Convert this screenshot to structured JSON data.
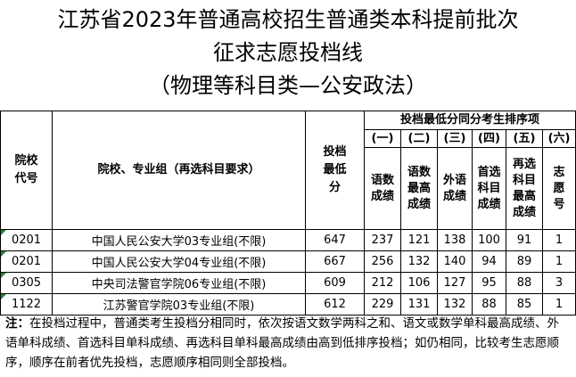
{
  "title_lines": [
    "江苏省2023年普通高校招生普通类本科提前批次",
    "征求志愿投档线",
    "（物理等科目类—公安政法）"
  ],
  "headers": {
    "code": "院校代号",
    "school": "院校、专业组（再选科目要求）",
    "min_score": "投档最低分",
    "rank_group": "投档最低分同分考生排序项",
    "subs": [
      {
        "num": "(一)",
        "label": "语数成绩"
      },
      {
        "num": "(二)",
        "label": "语数最高成绩"
      },
      {
        "num": "(三)",
        "label": "外语成绩"
      },
      {
        "num": "(四)",
        "label": "首选科目成绩"
      },
      {
        "num": "(五)",
        "label": "再选科目最高成绩"
      },
      {
        "num": "(六)",
        "label": "志愿号"
      }
    ]
  },
  "rows": [
    {
      "code": "0201",
      "name": "中国人民公安大学03专业组(不限)",
      "min": "647",
      "c1": "237",
      "c2": "121",
      "c3": "138",
      "c4": "100",
      "c5": "91",
      "c6": "1"
    },
    {
      "code": "0201",
      "name": "中国人民公安大学04专业组(不限)",
      "min": "667",
      "c1": "256",
      "c2": "132",
      "c3": "140",
      "c4": "94",
      "c5": "89",
      "c6": "1"
    },
    {
      "code": "0305",
      "name": "中央司法警官学院06专业组(不限)",
      "min": "609",
      "c1": "212",
      "c2": "106",
      "c3": "127",
      "c4": "95",
      "c5": "88",
      "c6": "3"
    },
    {
      "code": "1122",
      "name": "江苏警官学院03专业组(不限)",
      "min": "612",
      "c1": "229",
      "c2": "131",
      "c3": "132",
      "c4": "88",
      "c5": "85",
      "c6": "1"
    }
  ],
  "note": {
    "label": "注：",
    "text": "在投档过程中，普通类考生投档分相同时，依次按语文数学两科之和、语文或数学单科最高成绩、外语单科成绩、首选科目单科成绩、再选科目单科最高成绩由高到低排序投档；如仍相同，比较考生志愿顺序，顺序在前者优先投档，志愿顺序相同则全部投档。"
  }
}
